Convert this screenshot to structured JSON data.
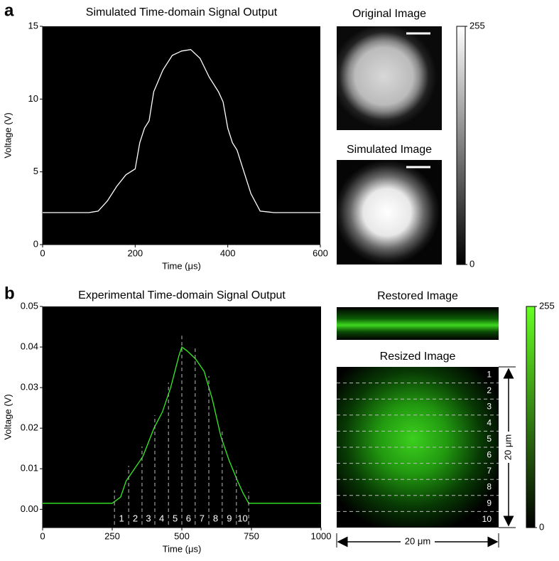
{
  "chart_data": [
    {
      "type": "line",
      "panel": "a",
      "title": "Simulated Time-domain Signal Output",
      "x_label": "Time (μs)",
      "y_label": "Voltage (V)",
      "color": "#ffffff",
      "background": "#000000",
      "x": [
        0,
        100,
        120,
        140,
        160,
        180,
        200,
        210,
        220,
        230,
        240,
        260,
        280,
        300,
        320,
        340,
        360,
        380,
        390,
        400,
        410,
        420,
        430,
        450,
        470,
        500,
        600
      ],
      "values": [
        2.2,
        2.2,
        2.3,
        3,
        4,
        4.8,
        5.2,
        7,
        8,
        8.5,
        10.5,
        12,
        13,
        13.3,
        13.4,
        12.8,
        11.5,
        10.5,
        9.8,
        8,
        7,
        6.5,
        5.5,
        3.5,
        2.3,
        2.2,
        2.2
      ],
      "xlim": [
        0,
        600
      ],
      "xticks": [
        0,
        200,
        400,
        600
      ],
      "ylim": [
        0,
        15
      ],
      "yticks": [
        0,
        5,
        10,
        15
      ],
      "images": [
        {
          "title": "Original Image"
        },
        {
          "title": "Simulated Image"
        }
      ],
      "colorbar": {
        "lim": [
          0,
          255
        ],
        "ticks": [
          0,
          255
        ],
        "colors": [
          "#000000",
          "#ffffff"
        ]
      }
    },
    {
      "type": "line",
      "panel": "b",
      "title": "Experimental Time-domain Signal Output",
      "x_label": "Time (μs)",
      "y_label": "Voltage (V)",
      "color": "#33ee22",
      "background": "#000000",
      "x": [
        0,
        250,
        280,
        300,
        330,
        360,
        400,
        430,
        460,
        490,
        500,
        520,
        550,
        580,
        610,
        640,
        670,
        700,
        720,
        740,
        1000
      ],
      "values": [
        0.0015,
        0.0015,
        0.003,
        0.007,
        0.01,
        0.013,
        0.02,
        0.024,
        0.03,
        0.038,
        0.04,
        0.039,
        0.037,
        0.034,
        0.027,
        0.018,
        0.012,
        0.007,
        0.004,
        0.0015,
        0.0015
      ],
      "xlim": [
        0,
        1000
      ],
      "xticks": [
        0,
        250,
        500,
        750,
        1000
      ],
      "ylim": [
        -0.0045,
        0.05
      ],
      "yticks": [
        {
          "value": 0,
          "label": "0.00"
        },
        0.01,
        0.02,
        0.03,
        0.04,
        0.05
      ],
      "segments": {
        "boundaries": [
          258,
          309,
          357,
          403,
          452,
          500,
          548,
          597,
          645,
          696,
          740
        ],
        "labels": [
          1,
          2,
          3,
          4,
          5,
          6,
          7,
          8,
          9,
          10
        ]
      },
      "images": [
        {
          "title": "Restored Image"
        },
        {
          "title": "Resized Image",
          "row_labels": [
            1,
            2,
            3,
            4,
            5,
            6,
            7,
            8,
            9,
            10
          ],
          "scale_label": "20 μm"
        }
      ],
      "colorbar": {
        "lim": [
          0,
          255
        ],
        "ticks": [
          0,
          255
        ],
        "colors": [
          "#000000",
          "#66ff22"
        ]
      }
    }
  ]
}
